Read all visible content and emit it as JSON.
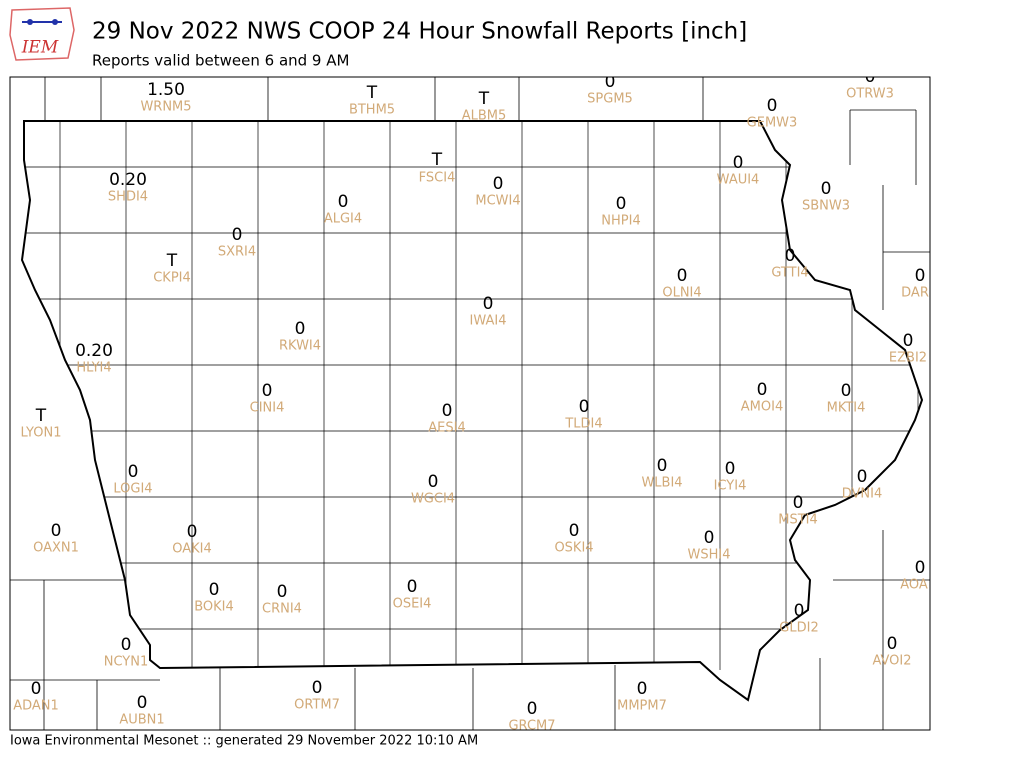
{
  "header": {
    "logo": "IEM",
    "title": "29 Nov 2022 NWS COOP 24 Hour Snowfall Reports [inch]",
    "subtitle": "Reports valid between 6 and 9 AM"
  },
  "stations": [
    {
      "value": "1.50",
      "id": "WRNM5"
    },
    {
      "value": "T",
      "id": "BTHM5"
    },
    {
      "value": "T",
      "id": "ALBM5"
    },
    {
      "value": "0",
      "id": "SPGM5"
    },
    {
      "value": "0",
      "id": "OTRW3"
    },
    {
      "value": "0",
      "id": "GEMW3"
    },
    {
      "value": "0.20",
      "id": "SHDI4"
    },
    {
      "value": "T",
      "id": "FSCI4"
    },
    {
      "value": "0",
      "id": "MCWI4"
    },
    {
      "value": "0",
      "id": "ALGI4"
    },
    {
      "value": "0",
      "id": "NHPI4"
    },
    {
      "value": "0",
      "id": "WAUI4"
    },
    {
      "value": "0",
      "id": "SBNW3"
    },
    {
      "value": "0",
      "id": "SXRI4"
    },
    {
      "value": "T",
      "id": "CKPI4"
    },
    {
      "value": "0",
      "id": "GTTI4"
    },
    {
      "value": "0",
      "id": "OLNI4"
    },
    {
      "value": "0",
      "id": "DAR"
    },
    {
      "value": "0",
      "id": "IWAI4"
    },
    {
      "value": "0",
      "id": "RKWI4"
    },
    {
      "value": "0.20",
      "id": "HLYI4"
    },
    {
      "value": "0",
      "id": "EZBI2"
    },
    {
      "value": "0",
      "id": "CINI4"
    },
    {
      "value": "0",
      "id": "AMOI4"
    },
    {
      "value": "0",
      "id": "MKTI4"
    },
    {
      "value": "T",
      "id": "LYON1"
    },
    {
      "value": "0",
      "id": "AESI4"
    },
    {
      "value": "0",
      "id": "TLDI4"
    },
    {
      "value": "0",
      "id": "LOGI4"
    },
    {
      "value": "0",
      "id": "WGCI4"
    },
    {
      "value": "0",
      "id": "WLBI4"
    },
    {
      "value": "0",
      "id": "ICYI4"
    },
    {
      "value": "0",
      "id": "DVNI4"
    },
    {
      "value": "0",
      "id": "MSTI4"
    },
    {
      "value": "0",
      "id": "OAXN1"
    },
    {
      "value": "0",
      "id": "OAKI4"
    },
    {
      "value": "0",
      "id": "OSKI4"
    },
    {
      "value": "0",
      "id": "WSHI4"
    },
    {
      "value": "0",
      "id": "AOA"
    },
    {
      "value": "0",
      "id": "BOKI4"
    },
    {
      "value": "0",
      "id": "CRNI4"
    },
    {
      "value": "0",
      "id": "OSEI4"
    },
    {
      "value": "0",
      "id": "GLDI2"
    },
    {
      "value": "0",
      "id": "NCYN1"
    },
    {
      "value": "0",
      "id": "AVOI2"
    },
    {
      "value": "0",
      "id": "ADAN1"
    },
    {
      "value": "0",
      "id": "ORTM7"
    },
    {
      "value": "0",
      "id": "MMPM7"
    },
    {
      "value": "0",
      "id": "AUBN1"
    },
    {
      "value": "0",
      "id": "GRCM7"
    }
  ],
  "footer": "Iowa Environmental Mesonet :: generated 29 November 2022 10:10 AM"
}
